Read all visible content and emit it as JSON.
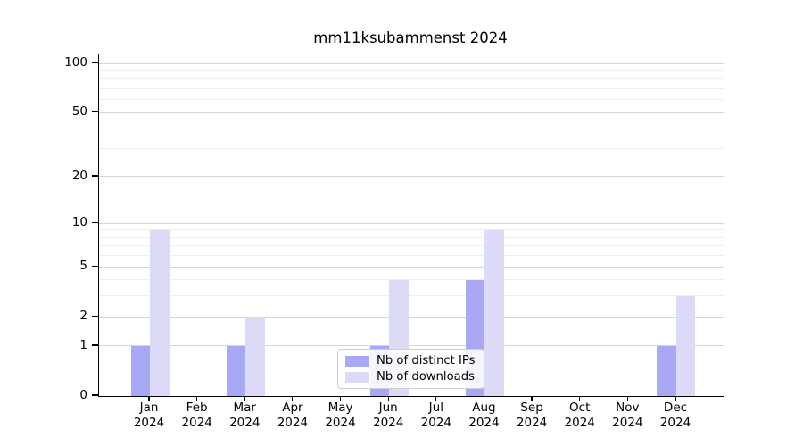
{
  "chart_data": {
    "type": "bar",
    "title": "mm11ksubammenst 2024",
    "yscale": "log1p",
    "ylim": [
      0,
      100
    ],
    "yticks": [
      0,
      1,
      2,
      5,
      10,
      20,
      50,
      100
    ],
    "minor_gridlines": [
      3,
      4,
      6,
      7,
      8,
      9,
      30,
      40,
      60,
      70,
      80,
      90
    ],
    "grid": "horizontal",
    "legend_position": "lower-center",
    "categories": [
      {
        "month": "Jan",
        "year": "2024"
      },
      {
        "month": "Feb",
        "year": "2024"
      },
      {
        "month": "Mar",
        "year": "2024"
      },
      {
        "month": "Apr",
        "year": "2024"
      },
      {
        "month": "May",
        "year": "2024"
      },
      {
        "month": "Jun",
        "year": "2024"
      },
      {
        "month": "Jul",
        "year": "2024"
      },
      {
        "month": "Aug",
        "year": "2024"
      },
      {
        "month": "Sep",
        "year": "2024"
      },
      {
        "month": "Oct",
        "year": "2024"
      },
      {
        "month": "Nov",
        "year": "2024"
      },
      {
        "month": "Dec",
        "year": "2024"
      }
    ],
    "series": [
      {
        "name": "Nb of distinct IPs",
        "color": "#a8a8f4",
        "values": [
          1,
          0,
          1,
          0,
          0,
          1,
          0,
          4,
          0,
          0,
          0,
          1
        ]
      },
      {
        "name": "Nb of downloads",
        "color": "#dbdbf8",
        "values": [
          9,
          0,
          2,
          0,
          0,
          4,
          0,
          9,
          0,
          0,
          0,
          3
        ]
      }
    ]
  },
  "colors": {
    "axis": "#000000",
    "grid_major": "#d5d5d5",
    "grid_minor": "#eeeeee",
    "background": "#ffffff"
  }
}
